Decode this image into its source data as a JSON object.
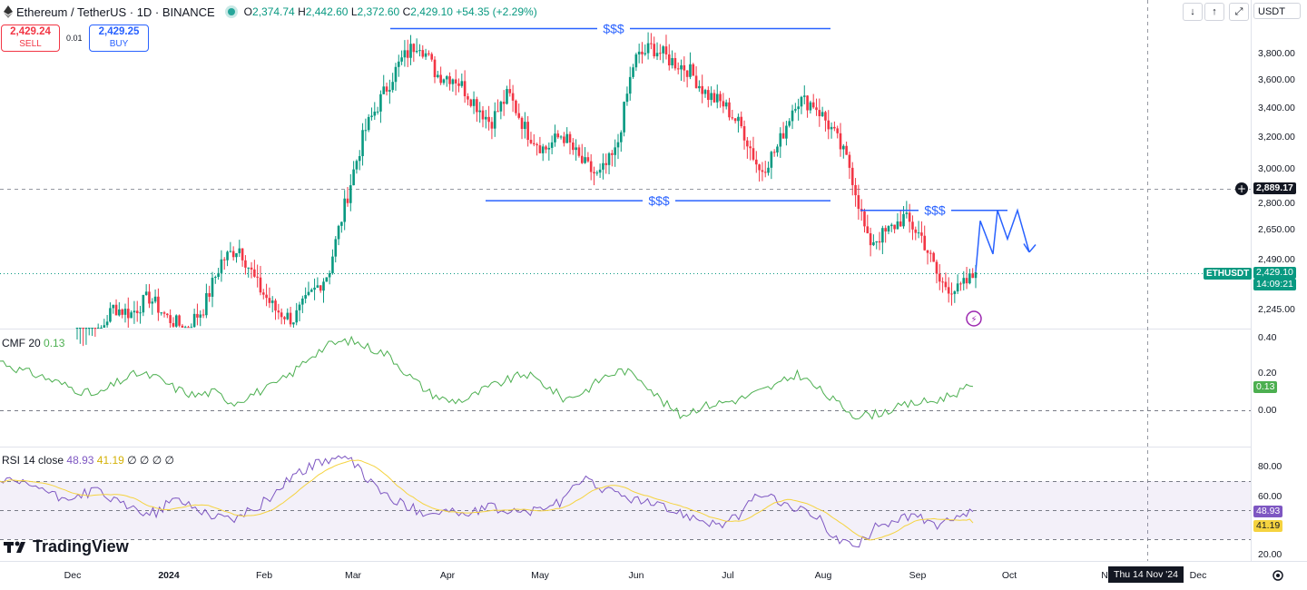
{
  "header": {
    "symbol": "Ethereum / TetherUS · 1D · BINANCE",
    "ohlc": {
      "o_label": "O",
      "o": "2,374.74",
      "h_label": "H",
      "h": "2,442.60",
      "l_label": "L",
      "l": "2,372.60",
      "c_label": "C",
      "c": "2,429.10",
      "change": "+54.35 (+2.29%)"
    },
    "sell": {
      "price": "2,429.24",
      "label": "SELL"
    },
    "buy": {
      "price": "2,429.25",
      "label": "BUY"
    },
    "spread": "0.01"
  },
  "toolbar": {
    "currency": "USDT"
  },
  "price_axis": {
    "labels": [
      "3,800.00",
      "3,600.00",
      "3,400.00",
      "3,200.00",
      "3,000.00",
      "2,800.00",
      "2,650.00",
      "2,490.00",
      "2,245.00"
    ],
    "crosshair_price": "2,889.17",
    "last_symbol": "ETHUSDT",
    "last_price": "2,429.10",
    "countdown": "14:09:21"
  },
  "cmf": {
    "legend": "CMF 20",
    "value": "0.13",
    "axis": [
      "0.40",
      "0.20",
      "0.00"
    ]
  },
  "rsi": {
    "legend": "RSI 14 close",
    "value": "48.93",
    "ma_value": "41.19",
    "extras": "∅ ∅ ∅ ∅",
    "axis": [
      "80.00",
      "60.00",
      "20.00"
    ]
  },
  "time_axis": {
    "labels": [
      "Dec",
      "2024",
      "Feb",
      "Mar",
      "Apr",
      "May",
      "Jun",
      "Jul",
      "Aug",
      "Sep",
      "Oct",
      "No",
      "Dec"
    ],
    "crosshair_date": "Thu 14 Nov '24"
  },
  "annotations": {
    "liquidity": "$$$"
  },
  "brand": "TradingView",
  "colors": {
    "up": "#089981",
    "down": "#f23645",
    "accent": "#2962ff",
    "cmf": "#4caf50",
    "rsi": "#7e57c2",
    "rsi_ma": "#f5d33f"
  },
  "chart_data": {
    "type": "candlestick",
    "symbol": "ETHUSDT",
    "timeframe": "1D",
    "x": {
      "start": "2023-11-24",
      "end": "2024-09-19"
    },
    "ylim": [
      2110,
      4040
    ],
    "key_levels": [
      {
        "label": "$$$",
        "price": 3990
      },
      {
        "label": "$$$",
        "price": 2815
      },
      {
        "label": "$$$",
        "price": 2760
      }
    ],
    "closes_weekly": [
      2060,
      2100,
      2260,
      2230,
      2310,
      2210,
      2160,
      2250,
      2480,
      2560,
      2370,
      2250,
      2200,
      2320,
      2430,
      2830,
      3240,
      3490,
      3740,
      3900,
      3640,
      3620,
      3460,
      3300,
      3500,
      3240,
      3120,
      3220,
      3050,
      2950,
      3110,
      3750,
      3850,
      3750,
      3680,
      3500,
      3420,
      3260,
      2980,
      3140,
      3460,
      3430,
      3250,
      3010,
      2580,
      2630,
      2720,
      2610,
      2380,
      2340,
      2420
    ],
    "projection": [
      [
        2430,
        2700,
        2520,
        2760,
        2600,
        2760,
        2530
      ]
    ],
    "cmf": [
      0.27,
      0.22,
      0.19,
      0.15,
      0.11,
      0.08,
      0.15,
      0.2,
      0.18,
      0.12,
      0.08,
      0.1,
      0.04,
      0.09,
      0.13,
      0.2,
      0.3,
      0.36,
      0.38,
      0.34,
      0.3,
      0.19,
      0.1,
      0.05,
      0.06,
      0.12,
      0.16,
      0.2,
      0.14,
      0.06,
      0.1,
      0.18,
      0.22,
      0.17,
      0.05,
      -0.03,
      0.02,
      0.04,
      0.06,
      0.1,
      0.14,
      0.2,
      0.12,
      0.04,
      -0.03,
      -0.02,
      0.01,
      0.04,
      0.05,
      0.09,
      0.13
    ],
    "rsi": [
      70,
      68,
      66,
      58,
      60,
      64,
      55,
      50,
      48,
      58,
      52,
      46,
      44,
      50,
      60,
      74,
      80,
      86,
      84,
      70,
      58,
      52,
      48,
      50,
      46,
      52,
      50,
      48,
      52,
      56,
      74,
      64,
      60,
      56,
      52,
      48,
      44,
      40,
      46,
      62,
      56,
      50,
      46,
      30,
      24,
      38,
      44,
      46,
      40,
      42,
      48.93
    ]
  }
}
